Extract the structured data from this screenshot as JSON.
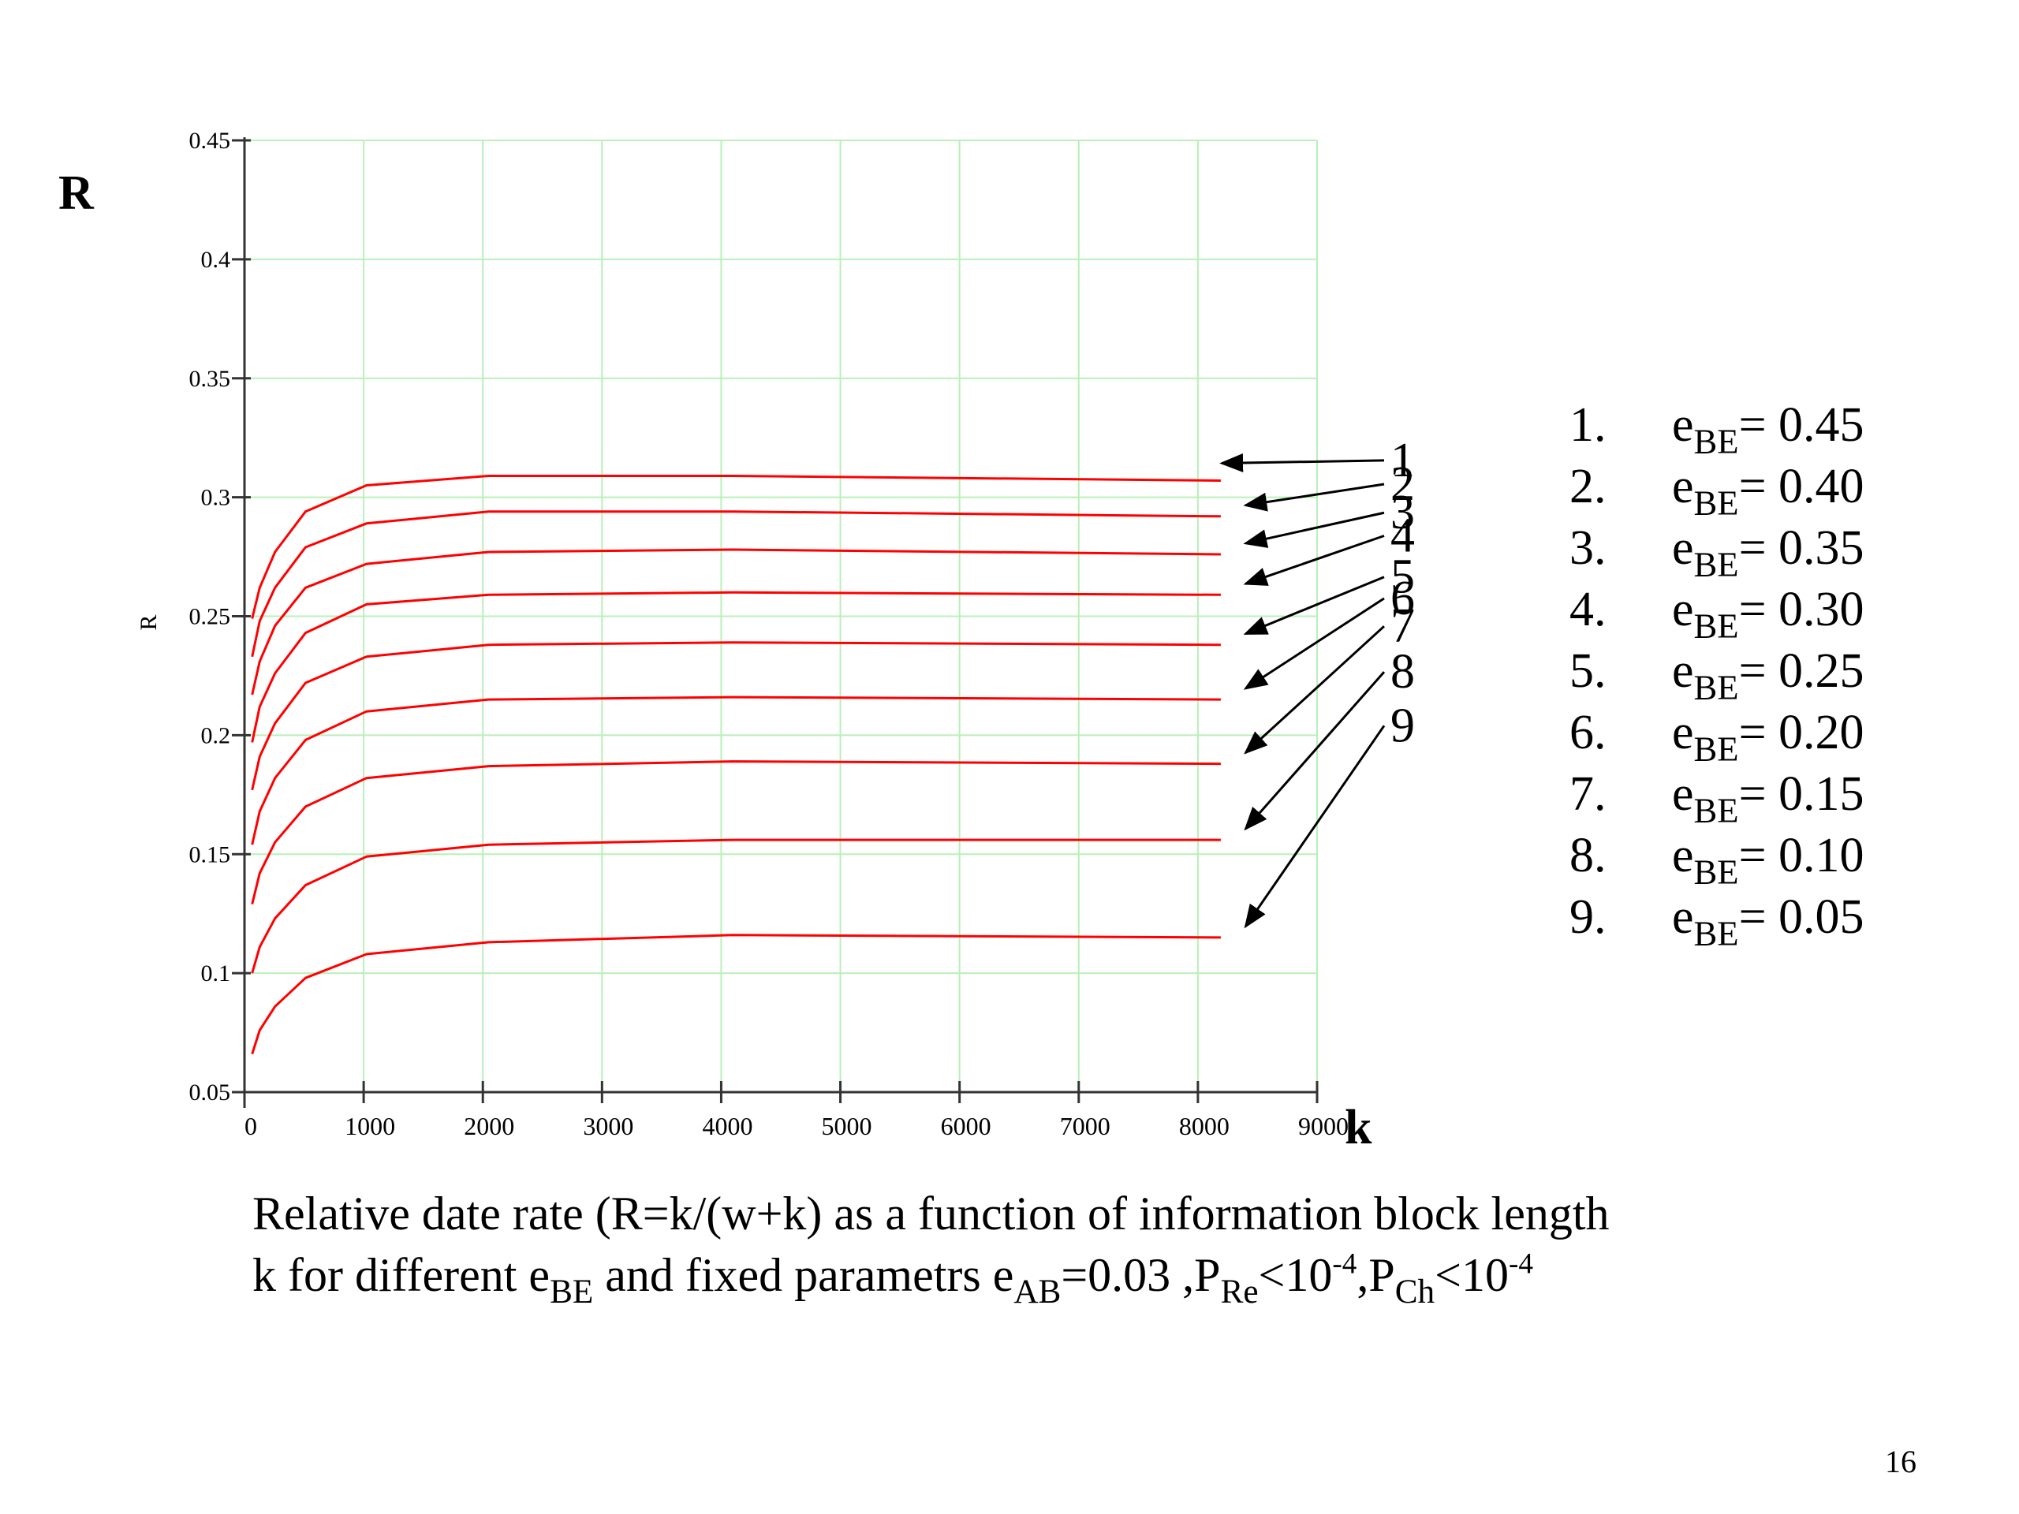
{
  "chart_data": {
    "type": "line",
    "y_axis_title_small": "R",
    "y_axis_title_large": "R",
    "x_axis_title_large": "k",
    "xlim": [
      0,
      9000
    ],
    "ylim": [
      0.05,
      0.45
    ],
    "x_ticks": [
      0,
      1000,
      2000,
      3000,
      4000,
      5000,
      6000,
      7000,
      8000,
      9000
    ],
    "x_tick_labels": [
      "0",
      "1000",
      "2000",
      "3000",
      "4000",
      "5000",
      "6000",
      "7000",
      "8000",
      "9000"
    ],
    "y_ticks": [
      0.05,
      0.1,
      0.15,
      0.2,
      0.25,
      0.3,
      0.35,
      0.4,
      0.45
    ],
    "y_tick_labels": [
      "0.05",
      "0.1",
      "0.15",
      "0.2",
      "0.25",
      "0.3",
      "0.35",
      "0.4",
      "0.45"
    ],
    "grid": true,
    "grid_color": "#b8f0b8",
    "line_color": "#ff0000",
    "x": [
      64,
      128,
      256,
      512,
      1024,
      2048,
      4096,
      8192
    ],
    "series": [
      {
        "label": "1",
        "values": [
          0.249,
          0.262,
          0.277,
          0.294,
          0.305,
          0.309,
          0.309,
          0.307
        ]
      },
      {
        "label": "2",
        "values": [
          0.233,
          0.248,
          0.262,
          0.279,
          0.289,
          0.294,
          0.294,
          0.292
        ]
      },
      {
        "label": "3",
        "values": [
          0.217,
          0.231,
          0.246,
          0.262,
          0.272,
          0.277,
          0.278,
          0.276
        ]
      },
      {
        "label": "4",
        "values": [
          0.197,
          0.212,
          0.226,
          0.243,
          0.255,
          0.259,
          0.26,
          0.259
        ]
      },
      {
        "label": "5",
        "values": [
          0.177,
          0.191,
          0.205,
          0.222,
          0.233,
          0.238,
          0.239,
          0.238
        ]
      },
      {
        "label": "6",
        "values": [
          0.154,
          0.168,
          0.182,
          0.198,
          0.21,
          0.215,
          0.216,
          0.215
        ]
      },
      {
        "label": "7",
        "values": [
          0.129,
          0.142,
          0.155,
          0.17,
          0.182,
          0.187,
          0.189,
          0.188
        ]
      },
      {
        "label": "8",
        "values": [
          0.1,
          0.111,
          0.123,
          0.137,
          0.149,
          0.154,
          0.156,
          0.156
        ]
      },
      {
        "label": "9",
        "values": [
          0.066,
          0.076,
          0.086,
          0.098,
          0.108,
          0.113,
          0.116,
          0.115
        ]
      }
    ]
  },
  "legend": {
    "items": [
      {
        "num": "1.",
        "sym": "e",
        "sub": "BE",
        "val": "= 0.45"
      },
      {
        "num": "2.",
        "sym": "e",
        "sub": "BE",
        "val": "= 0.40"
      },
      {
        "num": "3.",
        "sym": "e",
        "sub": "BE",
        "val": "= 0.35"
      },
      {
        "num": "4.",
        "sym": "e",
        "sub": "BE",
        "val": "= 0.30"
      },
      {
        "num": "5.",
        "sym": "e",
        "sub": "BE",
        "val": "= 0.25"
      },
      {
        "num": "6.",
        "sym": "e",
        "sub": "BE",
        "val": "= 0.20"
      },
      {
        "num": "7.",
        "sym": "e",
        "sub": "BE",
        "val": "= 0.15"
      },
      {
        "num": "8.",
        "sym": "e",
        "sub": "BE",
        "val": "= 0.10"
      },
      {
        "num": "9.",
        "sym": "e",
        "sub": "BE",
        "val": "= 0.05"
      }
    ]
  },
  "caption": {
    "line1": "Relative date rate (R=k/(w+k) as a function of information block length",
    "l2_a": "k for different e",
    "l2_sub1": "BE",
    "l2_b": " and fixed parametrs e",
    "l2_sub2": "AB",
    "l2_c": "=0.03  ,P",
    "l2_sub3": "Re",
    "l2_d": "<10",
    "l2_sup1": "-4",
    "l2_e": ",P",
    "l2_sub4": "Ch",
    "l2_f": "<10",
    "l2_sup2": "-4"
  },
  "page_number": "16"
}
